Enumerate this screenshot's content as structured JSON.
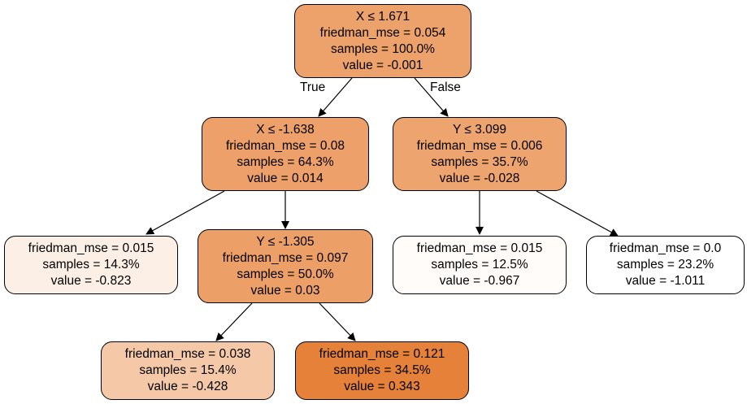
{
  "tree": {
    "edge_labels": {
      "true_label": "True",
      "false_label": "False"
    },
    "nodes": [
      {
        "id": "root",
        "split": "X ≤ 1.671",
        "mse": "friedman_mse = 0.054",
        "samples": "samples = 100.0%",
        "value": "value = -0.001",
        "fill": "#eda26b"
      },
      {
        "id": "n1",
        "split": "X ≤ -1.638",
        "mse": "friedman_mse = 0.08",
        "samples": "samples = 64.3%",
        "value": "value = 0.014",
        "fill": "#eda06a"
      },
      {
        "id": "n2",
        "split": "Y ≤ 3.099",
        "mse": "friedman_mse = 0.006",
        "samples": "samples = 35.7%",
        "value": "value = -0.028",
        "fill": "#eea46e"
      },
      {
        "id": "n3",
        "mse": "friedman_mse = 0.015",
        "samples": "samples = 14.3%",
        "value": "value = -0.823",
        "fill": "#fcefe6"
      },
      {
        "id": "n4",
        "split": "Y ≤ -1.305",
        "mse": "friedman_mse = 0.097",
        "samples": "samples = 50.0%",
        "value": "value = 0.03",
        "fill": "#ed9f68"
      },
      {
        "id": "n5",
        "mse": "friedman_mse = 0.015",
        "samples": "samples = 12.5%",
        "value": "value = -0.967",
        "fill": "#fffcfa"
      },
      {
        "id": "n6",
        "mse": "friedman_mse = 0.0",
        "samples": "samples = 23.2%",
        "value": "value = -1.011",
        "fill": "#ffffff"
      },
      {
        "id": "n7",
        "mse": "friedman_mse = 0.038",
        "samples": "samples = 15.4%",
        "value": "value = -0.428",
        "fill": "#f5c9a8"
      },
      {
        "id": "n8",
        "mse": "friedman_mse = 0.121",
        "samples": "samples = 34.5%",
        "value": "value = 0.343",
        "fill": "#e58139"
      }
    ]
  }
}
